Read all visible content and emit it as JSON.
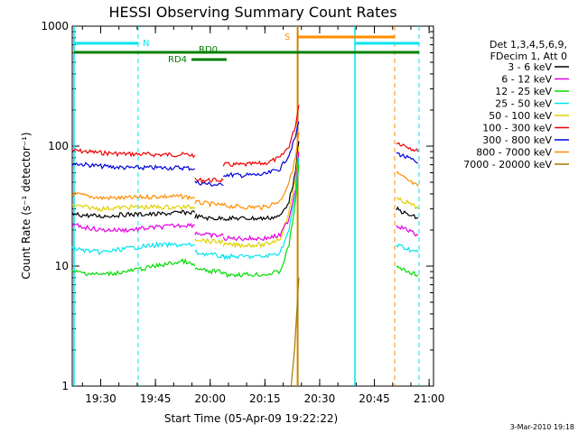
{
  "chart_data": {
    "type": "line",
    "title": "HESSI Observing Summary Count Rates",
    "xlabel": "Start Time (05-Apr-09 19:22:22)",
    "ylabel": "Count Rate (s⁻¹ detector⁻¹)",
    "yscale": "log",
    "ylim": [
      1,
      1000
    ],
    "xlim_minutes": [
      19.37,
      21.02
    ],
    "x_ticks": [
      "19:30",
      "19:45",
      "20:00",
      "20:15",
      "20:30",
      "20:45",
      "21:00"
    ],
    "y_ticks": [
      "1",
      "10",
      "100",
      "1000"
    ],
    "legend": {
      "position": "right",
      "header_line1": "Det 1,3,4,5,6,9,",
      "header_line2": "FDecim 1, Att 0",
      "entries": [
        {
          "label": "3 - 6 keV",
          "color": "#000000"
        },
        {
          "label": "6 - 12 keV",
          "color": "#e600e6"
        },
        {
          "label": "12 - 25 keV",
          "color": "#00dd00"
        },
        {
          "label": "25 - 50 keV",
          "color": "#00e5ee"
        },
        {
          "label": "50 - 100 keV",
          "color": "#e0d000"
        },
        {
          "label": "100 - 300 keV",
          "color": "#ee0000"
        },
        {
          "label": "300 - 800 keV",
          "color": "#0000dd"
        },
        {
          "label": "800 - 7000 keV",
          "color": "#ff8c00"
        },
        {
          "label": "7000 - 20000 keV",
          "color": "#a07800"
        }
      ]
    },
    "flags": [
      {
        "label": "N",
        "color": "#00e5ee"
      },
      {
        "label": "RD0",
        "color": "#008000"
      },
      {
        "label": "RD4",
        "color": "#008000"
      },
      {
        "label": "S",
        "color": "#ff8c00"
      }
    ],
    "series": [
      {
        "color": "#ee0000",
        "segments": [
          [
            [
              19.37,
              92
            ],
            [
              19.5,
              88
            ],
            [
              19.62,
              86
            ],
            [
              19.75,
              85
            ],
            [
              19.88,
              85
            ],
            [
              19.93,
              84
            ]
          ],
          [
            [
              19.93,
              52
            ],
            [
              20.0,
              52
            ],
            [
              20.06,
              52
            ]
          ],
          [
            [
              20.06,
              70
            ],
            [
              20.15,
              70
            ],
            [
              20.25,
              72
            ],
            [
              20.32,
              80
            ],
            [
              20.36,
              100
            ],
            [
              20.39,
              150
            ],
            [
              20.405,
              220
            ]
          ],
          [
            [
              20.85,
              108
            ],
            [
              20.9,
              100
            ],
            [
              20.95,
              90
            ]
          ]
        ]
      },
      {
        "color": "#0000dd",
        "segments": [
          [
            [
              19.37,
              72
            ],
            [
              19.5,
              68
            ],
            [
              19.62,
              66
            ],
            [
              19.75,
              66
            ],
            [
              19.88,
              66
            ],
            [
              19.93,
              65
            ]
          ],
          [
            [
              19.93,
              50
            ],
            [
              20.0,
              48
            ],
            [
              20.06,
              47
            ]
          ],
          [
            [
              20.06,
              58
            ],
            [
              20.15,
              57
            ],
            [
              20.25,
              58
            ],
            [
              20.32,
              65
            ],
            [
              20.36,
              85
            ],
            [
              20.39,
              120
            ],
            [
              20.405,
              160
            ]
          ],
          [
            [
              20.85,
              88
            ],
            [
              20.9,
              80
            ],
            [
              20.95,
              72
            ]
          ]
        ]
      },
      {
        "color": "#ff8c00",
        "segments": [
          [
            [
              19.37,
              40
            ],
            [
              19.5,
              37
            ],
            [
              19.62,
              37
            ],
            [
              19.75,
              38
            ],
            [
              19.88,
              38
            ],
            [
              19.93,
              37
            ]
          ],
          [
            [
              19.93,
              34
            ],
            [
              20.0,
              33
            ],
            [
              20.06,
              32
            ]
          ],
          [
            [
              20.06,
              32
            ],
            [
              20.15,
              31
            ],
            [
              20.25,
              31
            ],
            [
              20.32,
              35
            ],
            [
              20.36,
              50
            ],
            [
              20.39,
              80
            ],
            [
              20.405,
              130
            ]
          ],
          [
            [
              20.85,
              60
            ],
            [
              20.9,
              52
            ],
            [
              20.95,
              46
            ]
          ]
        ]
      },
      {
        "color": "#000000",
        "segments": [
          [
            [
              19.37,
              27
            ],
            [
              19.5,
              26
            ],
            [
              19.62,
              27
            ],
            [
              19.75,
              27
            ],
            [
              19.88,
              28
            ],
            [
              19.93,
              28
            ]
          ],
          [
            [
              19.93,
              26
            ],
            [
              20.0,
              25
            ],
            [
              20.06,
              25
            ]
          ],
          [
            [
              20.06,
              25
            ],
            [
              20.15,
              25
            ],
            [
              20.25,
              25
            ],
            [
              20.32,
              26
            ],
            [
              20.36,
              35
            ],
            [
              20.39,
              60
            ],
            [
              20.405,
              110
            ]
          ],
          [
            [
              20.85,
              30
            ],
            [
              20.9,
              27
            ],
            [
              20.95,
              25
            ]
          ]
        ]
      },
      {
        "color": "#e0d000",
        "segments": [
          [
            [
              19.37,
              32
            ],
            [
              19.5,
              30
            ],
            [
              19.62,
              31
            ],
            [
              19.75,
              31
            ],
            [
              19.88,
              31
            ],
            [
              19.93,
              31
            ]
          ],
          [
            [
              19.93,
              17
            ],
            [
              20.0,
              16
            ],
            [
              20.06,
              16
            ]
          ],
          [
            [
              20.06,
              15
            ],
            [
              20.15,
              15
            ],
            [
              20.25,
              15
            ],
            [
              20.32,
              17
            ],
            [
              20.36,
              28
            ],
            [
              20.39,
              55
            ],
            [
              20.405,
              100
            ]
          ],
          [
            [
              20.85,
              36
            ],
            [
              20.9,
              34
            ],
            [
              20.95,
              30
            ]
          ]
        ]
      },
      {
        "color": "#e600e6",
        "segments": [
          [
            [
              19.37,
              22
            ],
            [
              19.5,
              20
            ],
            [
              19.62,
              20
            ],
            [
              19.75,
              21
            ],
            [
              19.88,
              22
            ],
            [
              19.93,
              22
            ]
          ],
          [
            [
              19.93,
              19
            ],
            [
              20.0,
              18
            ],
            [
              20.06,
              18
            ]
          ],
          [
            [
              20.06,
              17
            ],
            [
              20.15,
              17
            ],
            [
              20.25,
              17
            ],
            [
              20.32,
              18
            ],
            [
              20.36,
              25
            ],
            [
              20.39,
              45
            ],
            [
              20.405,
              90
            ]
          ],
          [
            [
              20.85,
              22
            ],
            [
              20.9,
              20
            ],
            [
              20.95,
              18
            ]
          ]
        ]
      },
      {
        "color": "#00e5ee",
        "segments": [
          [
            [
              19.37,
              14
            ],
            [
              19.5,
              13
            ],
            [
              19.62,
              14
            ],
            [
              19.75,
              15
            ],
            [
              19.88,
              15
            ],
            [
              19.93,
              15
            ]
          ],
          [
            [
              19.93,
              13
            ],
            [
              20.0,
              12.5
            ],
            [
              20.06,
              12
            ]
          ],
          [
            [
              20.06,
              12
            ],
            [
              20.15,
              12
            ],
            [
              20.25,
              12
            ],
            [
              20.32,
              13
            ],
            [
              20.36,
              20
            ],
            [
              20.39,
              40
            ],
            [
              20.405,
              80
            ]
          ],
          [
            [
              20.85,
              15
            ],
            [
              20.9,
              14
            ],
            [
              20.95,
              13
            ]
          ]
        ]
      },
      {
        "color": "#00dd00",
        "segments": [
          [
            [
              19.37,
              9
            ],
            [
              19.5,
              8.5
            ],
            [
              19.62,
              9
            ],
            [
              19.75,
              10
            ],
            [
              19.88,
              11
            ],
            [
              19.93,
              10
            ]
          ],
          [
            [
              19.93,
              9.5
            ],
            [
              20.0,
              9
            ],
            [
              20.06,
              9
            ]
          ],
          [
            [
              20.06,
              8.5
            ],
            [
              20.15,
              8.5
            ],
            [
              20.25,
              8.5
            ],
            [
              20.32,
              9
            ],
            [
              20.36,
              15
            ],
            [
              20.39,
              35
            ],
            [
              20.405,
              70
            ]
          ],
          [
            [
              20.85,
              10
            ],
            [
              20.9,
              9
            ],
            [
              20.95,
              8.5
            ]
          ]
        ]
      },
      {
        "color": "#a07800",
        "segments": [
          [
            [
              20.37,
              1
            ],
            [
              20.385,
              2
            ],
            [
              20.395,
              4
            ],
            [
              20.405,
              8
            ]
          ]
        ]
      }
    ]
  },
  "footer": {
    "timestamp": "3-Mar-2010 19:18"
  }
}
